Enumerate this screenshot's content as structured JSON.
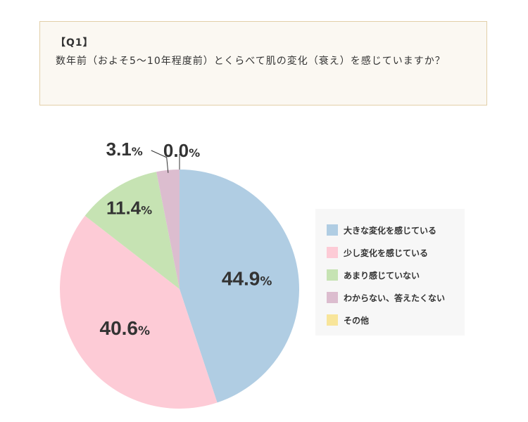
{
  "question": {
    "label": "【Q1】",
    "text": "数年前（およそ5〜10年程度前）とくらべて肌の変化（衰え）を感じていますか？"
  },
  "chart_data": {
    "type": "pie",
    "unit": "%",
    "categories": [
      "大きな変化を感じている",
      "少し変化を感じている",
      "あまり感じていない",
      "わからない、答えたくない",
      "その他"
    ],
    "values": [
      44.9,
      40.6,
      11.4,
      3.1,
      0.0
    ],
    "labels": [
      "44.9",
      "40.6",
      "11.4",
      "3.1",
      "0.0"
    ],
    "colors": [
      "#b0cde3",
      "#fdcbd6",
      "#c6e3b3",
      "#dcbdcf",
      "#f8e59a"
    ],
    "start_angle": "12 o'clock",
    "direction": "clockwise",
    "legend_position": "right"
  }
}
